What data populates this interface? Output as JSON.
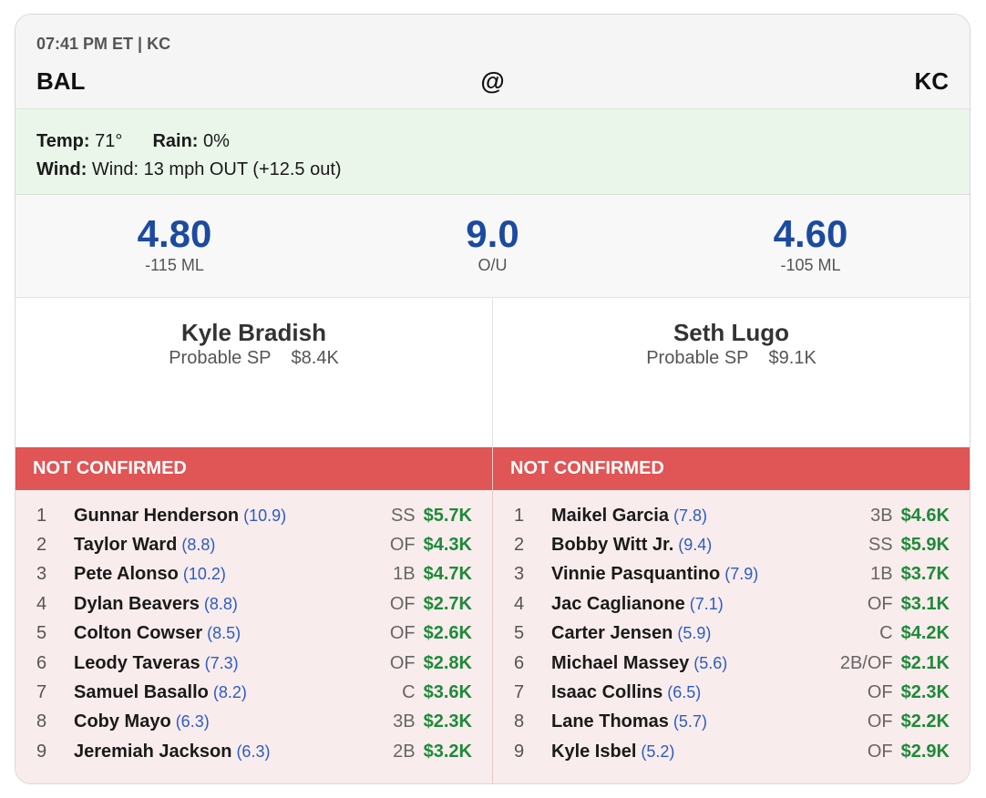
{
  "game": {
    "time_park": "07:41 PM ET | KC",
    "away_team": "BAL",
    "at": "@",
    "home_team": "KC"
  },
  "weather": {
    "temp_label": "Temp:",
    "temp_value": "71°",
    "rain_label": "Rain:",
    "rain_value": "0%",
    "wind_label": "Wind:",
    "wind_value": "Wind: 13 mph OUT (+12.5 out)"
  },
  "odds": {
    "away_total": "4.80",
    "away_ml": "-115 ML",
    "over_under": "9.0",
    "ou_label": "O/U",
    "home_total": "4.60",
    "home_ml": "-105 ML"
  },
  "pitchers": {
    "away": {
      "name": "Kyle Bradish",
      "role": "Probable SP",
      "salary": "$8.4K"
    },
    "home": {
      "name": "Seth Lugo",
      "role": "Probable SP",
      "salary": "$9.1K"
    }
  },
  "lineups": {
    "away": {
      "status": "NOT CONFIRMED",
      "players": [
        {
          "order": "1",
          "name": "Gunnar Henderson",
          "proj": "(10.9)",
          "pos": "SS",
          "salary": "$5.7K"
        },
        {
          "order": "2",
          "name": "Taylor Ward",
          "proj": "(8.8)",
          "pos": "OF",
          "salary": "$4.3K"
        },
        {
          "order": "3",
          "name": "Pete Alonso",
          "proj": "(10.2)",
          "pos": "1B",
          "salary": "$4.7K"
        },
        {
          "order": "4",
          "name": "Dylan Beavers",
          "proj": "(8.8)",
          "pos": "OF",
          "salary": "$2.7K"
        },
        {
          "order": "5",
          "name": "Colton Cowser",
          "proj": "(8.5)",
          "pos": "OF",
          "salary": "$2.6K"
        },
        {
          "order": "6",
          "name": "Leody Taveras",
          "proj": "(7.3)",
          "pos": "OF",
          "salary": "$2.8K"
        },
        {
          "order": "7",
          "name": "Samuel Basallo",
          "proj": "(8.2)",
          "pos": "C",
          "salary": "$3.6K"
        },
        {
          "order": "8",
          "name": "Coby Mayo",
          "proj": "(6.3)",
          "pos": "3B",
          "salary": "$2.3K"
        },
        {
          "order": "9",
          "name": "Jeremiah Jackson",
          "proj": "(6.3)",
          "pos": "2B",
          "salary": "$3.2K"
        }
      ]
    },
    "home": {
      "status": "NOT CONFIRMED",
      "players": [
        {
          "order": "1",
          "name": "Maikel Garcia",
          "proj": "(7.8)",
          "pos": "3B",
          "salary": "$4.6K"
        },
        {
          "order": "2",
          "name": "Bobby Witt Jr.",
          "proj": "(9.4)",
          "pos": "SS",
          "salary": "$5.9K"
        },
        {
          "order": "3",
          "name": "Vinnie Pasquantino",
          "proj": "(7.9)",
          "pos": "1B",
          "salary": "$3.7K"
        },
        {
          "order": "4",
          "name": "Jac Caglianone",
          "proj": "(7.1)",
          "pos": "OF",
          "salary": "$3.1K"
        },
        {
          "order": "5",
          "name": "Carter Jensen",
          "proj": "(5.9)",
          "pos": "C",
          "salary": "$4.2K"
        },
        {
          "order": "6",
          "name": "Michael Massey",
          "proj": "(5.6)",
          "pos": "2B/OF",
          "salary": "$2.1K"
        },
        {
          "order": "7",
          "name": "Isaac Collins",
          "proj": "(6.5)",
          "pos": "OF",
          "salary": "$2.3K"
        },
        {
          "order": "8",
          "name": "Lane Thomas",
          "proj": "(5.7)",
          "pos": "OF",
          "salary": "$2.2K"
        },
        {
          "order": "9",
          "name": "Kyle Isbel",
          "proj": "(5.2)",
          "pos": "OF",
          "salary": "$2.9K"
        }
      ]
    }
  }
}
